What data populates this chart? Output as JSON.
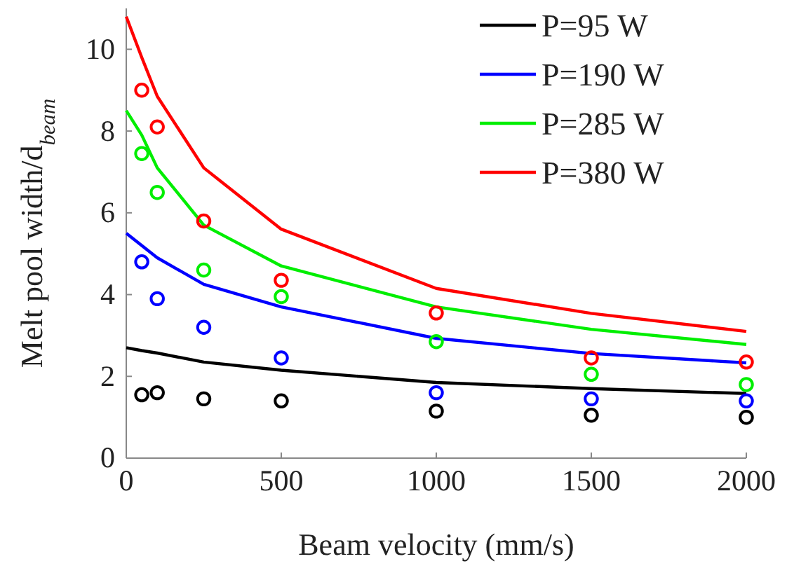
{
  "chart_data": {
    "type": "line",
    "xlabel": "Beam velocity (mm/s)",
    "ylabel": "Melt pool width/d$_{beam}$",
    "xlim": [
      0,
      2000
    ],
    "xticks": [
      0,
      500,
      1000,
      1500,
      2000
    ],
    "ylim": [
      0,
      11
    ],
    "yticks": [
      0,
      2,
      4,
      6,
      8,
      10
    ],
    "legend": "top right",
    "marker": "none",
    "line_style": "solid",
    "series": [
      {
        "name": "P=95 W",
        "color": "#000000",
        "x": [
          0,
          50,
          100,
          250,
          500,
          1000,
          1500,
          2000
        ],
        "values": [
          2.7,
          2.63,
          2.57,
          2.35,
          2.15,
          1.85,
          1.7,
          1.58
        ]
      },
      {
        "name": "P=190 W",
        "color": "#0000ff",
        "x": [
          0,
          50,
          100,
          250,
          500,
          1000,
          1500,
          2000
        ],
        "values": [
          5.5,
          5.2,
          4.9,
          4.25,
          3.7,
          2.93,
          2.56,
          2.33
        ]
      },
      {
        "name": "P=285 W",
        "color": "#00ee00",
        "x": [
          0,
          50,
          100,
          250,
          500,
          1000,
          1500,
          2000
        ],
        "values": [
          8.5,
          7.9,
          7.1,
          5.7,
          4.7,
          3.7,
          3.15,
          2.78
        ]
      },
      {
        "name": "P=380 W",
        "color": "#ff0000",
        "x": [
          0,
          50,
          100,
          250,
          500,
          1000,
          1500,
          2000
        ],
        "values": [
          10.8,
          9.8,
          8.85,
          7.1,
          5.6,
          4.15,
          3.54,
          3.1
        ]
      },
      {
        "type": "scatter",
        "marker": "circle",
        "color": "#000000",
        "x": [
          50,
          100,
          250,
          500,
          1000,
          1500,
          2000
        ],
        "values": [
          1.55,
          1.6,
          1.45,
          1.4,
          1.15,
          1.05,
          1.0
        ]
      },
      {
        "type": "scatter",
        "marker": "circle",
        "color": "#0000ff",
        "x": [
          50,
          100,
          250,
          500,
          1000,
          1500,
          2000
        ],
        "values": [
          4.8,
          3.9,
          3.2,
          2.45,
          1.6,
          1.45,
          1.4
        ]
      },
      {
        "type": "scatter",
        "marker": "circle",
        "color": "#00ee00",
        "x": [
          50,
          100,
          250,
          500,
          1000,
          1500,
          2000
        ],
        "values": [
          7.45,
          6.5,
          4.6,
          3.95,
          2.85,
          2.05,
          1.8
        ]
      },
      {
        "type": "scatter",
        "marker": "circle",
        "color": "#ff0000",
        "x": [
          50,
          100,
          250,
          500,
          1000,
          1500,
          2000
        ],
        "values": [
          9.0,
          8.1,
          5.8,
          4.35,
          3.55,
          2.45,
          2.35
        ]
      }
    ]
  }
}
